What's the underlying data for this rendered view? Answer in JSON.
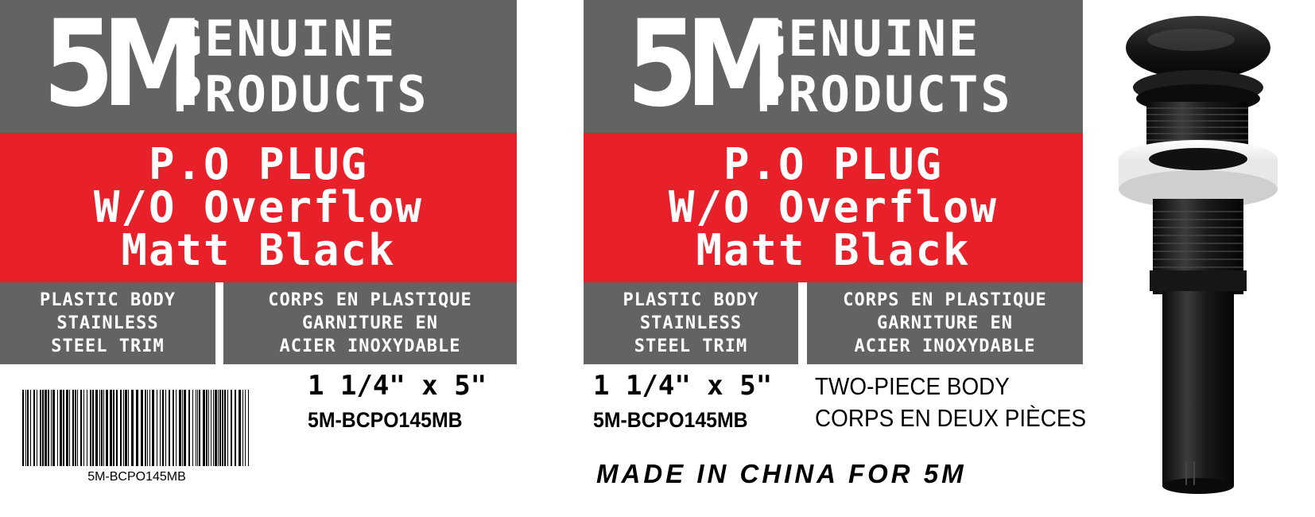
{
  "brand": {
    "logo": "5M",
    "line1": "GENUINE",
    "line2": "PRODUCTS"
  },
  "product": {
    "line1": "P.O PLUG",
    "line2": "W/O Overflow",
    "line3": "Matt Black"
  },
  "specs": {
    "en": [
      "PLASTIC BODY",
      "STAINLESS",
      "STEEL TRIM"
    ],
    "fr": [
      "CORPS EN PLASTIQUE",
      "GARNITURE EN",
      "ACIER INOXYDABLE"
    ]
  },
  "size": "1 1/4\" x 5\"",
  "sku": "5M-BCPO145MB",
  "barcode_text": "5M-BCPO145MB",
  "features": {
    "en": "TWO-PIECE BODY",
    "fr": "CORPS EN DEUX PIÈCES"
  },
  "origin": "MADE IN CHINA FOR 5M",
  "colors": {
    "gray_band": "#636363",
    "red_band": "#e8202a",
    "text_white": "#ffffff"
  },
  "icons": {
    "product_image": "pop-up-drain-plug"
  }
}
